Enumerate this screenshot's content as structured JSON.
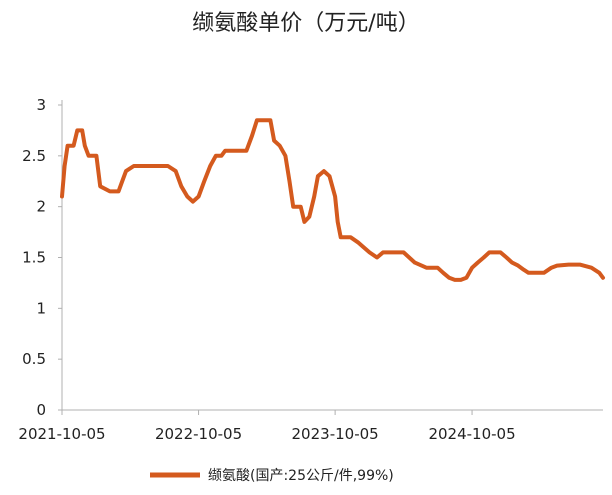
{
  "chart_data": {
    "type": "line",
    "title": "缬氨酸单价（万元/吨）",
    "xlabel": "",
    "ylabel": "",
    "ylim": [
      0,
      3
    ],
    "y_ticks": [
      "0",
      "0.5",
      "1",
      "1.5",
      "2",
      "2.5",
      "3"
    ],
    "x_ticks": [
      "2021-10-05",
      "2022-10-05",
      "2023-10-05",
      "2024-10-05"
    ],
    "x_range": [
      "2021-10-05",
      "2025-09-20"
    ],
    "grid": false,
    "legend_position": "bottom",
    "colors": {
      "series": "#d45a1e",
      "axis": "#b0b0b0",
      "text": "#222222"
    },
    "series": [
      {
        "name": "缬氨酸(国产:25公斤/件,99%)",
        "points": [
          [
            "2021-10-05",
            2.1
          ],
          [
            "2021-10-12",
            2.4
          ],
          [
            "2021-10-20",
            2.6
          ],
          [
            "2021-11-05",
            2.6
          ],
          [
            "2021-11-15",
            2.75
          ],
          [
            "2021-11-28",
            2.75
          ],
          [
            "2021-12-05",
            2.6
          ],
          [
            "2021-12-15",
            2.5
          ],
          [
            "2022-01-05",
            2.5
          ],
          [
            "2022-01-15",
            2.2
          ],
          [
            "2022-02-10",
            2.15
          ],
          [
            "2022-03-05",
            2.15
          ],
          [
            "2022-03-15",
            2.25
          ],
          [
            "2022-03-25",
            2.35
          ],
          [
            "2022-04-15",
            2.4
          ],
          [
            "2022-05-01",
            2.4
          ],
          [
            "2022-07-15",
            2.4
          ],
          [
            "2022-08-05",
            2.35
          ],
          [
            "2022-08-20",
            2.2
          ],
          [
            "2022-09-05",
            2.1
          ],
          [
            "2022-09-20",
            2.05
          ],
          [
            "2022-10-05",
            2.1
          ],
          [
            "2022-10-20",
            2.25
          ],
          [
            "2022-11-05",
            2.4
          ],
          [
            "2022-11-20",
            2.5
          ],
          [
            "2022-12-05",
            2.5
          ],
          [
            "2022-12-15",
            2.55
          ],
          [
            "2023-02-10",
            2.55
          ],
          [
            "2023-02-25",
            2.7
          ],
          [
            "2023-03-10",
            2.85
          ],
          [
            "2023-04-15",
            2.85
          ],
          [
            "2023-04-25",
            2.65
          ],
          [
            "2023-05-10",
            2.6
          ],
          [
            "2023-05-25",
            2.5
          ],
          [
            "2023-06-05",
            2.25
          ],
          [
            "2023-06-15",
            2.0
          ],
          [
            "2023-07-05",
            2.0
          ],
          [
            "2023-07-15",
            1.85
          ],
          [
            "2023-07-28",
            1.9
          ],
          [
            "2023-08-10",
            2.1
          ],
          [
            "2023-08-20",
            2.3
          ],
          [
            "2023-09-05",
            2.35
          ],
          [
            "2023-09-20",
            2.3
          ],
          [
            "2023-10-05",
            2.1
          ],
          [
            "2023-10-12",
            1.85
          ],
          [
            "2023-10-20",
            1.7
          ],
          [
            "2023-11-15",
            1.7
          ],
          [
            "2023-12-05",
            1.65
          ],
          [
            "2023-12-20",
            1.6
          ],
          [
            "2024-01-05",
            1.55
          ],
          [
            "2024-01-25",
            1.5
          ],
          [
            "2024-02-10",
            1.55
          ],
          [
            "2024-03-05",
            1.55
          ],
          [
            "2024-04-05",
            1.55
          ],
          [
            "2024-04-20",
            1.5
          ],
          [
            "2024-05-05",
            1.45
          ],
          [
            "2024-06-05",
            1.4
          ],
          [
            "2024-07-05",
            1.4
          ],
          [
            "2024-07-20",
            1.35
          ],
          [
            "2024-08-05",
            1.3
          ],
          [
            "2024-08-20",
            1.28
          ],
          [
            "2024-09-05",
            1.28
          ],
          [
            "2024-09-20",
            1.3
          ],
          [
            "2024-10-05",
            1.4
          ],
          [
            "2024-10-20",
            1.45
          ],
          [
            "2024-11-05",
            1.5
          ],
          [
            "2024-11-20",
            1.55
          ],
          [
            "2024-12-20",
            1.55
          ],
          [
            "2025-01-05",
            1.5
          ],
          [
            "2025-01-20",
            1.45
          ],
          [
            "2025-02-05",
            1.42
          ],
          [
            "2025-02-20",
            1.38
          ],
          [
            "2025-03-05",
            1.35
          ],
          [
            "2025-04-15",
            1.35
          ],
          [
            "2025-05-05",
            1.4
          ],
          [
            "2025-05-20",
            1.42
          ],
          [
            "2025-06-20",
            1.43
          ],
          [
            "2025-07-20",
            1.43
          ],
          [
            "2025-08-20",
            1.4
          ],
          [
            "2025-09-10",
            1.35
          ],
          [
            "2025-09-20",
            1.3
          ]
        ]
      }
    ]
  }
}
